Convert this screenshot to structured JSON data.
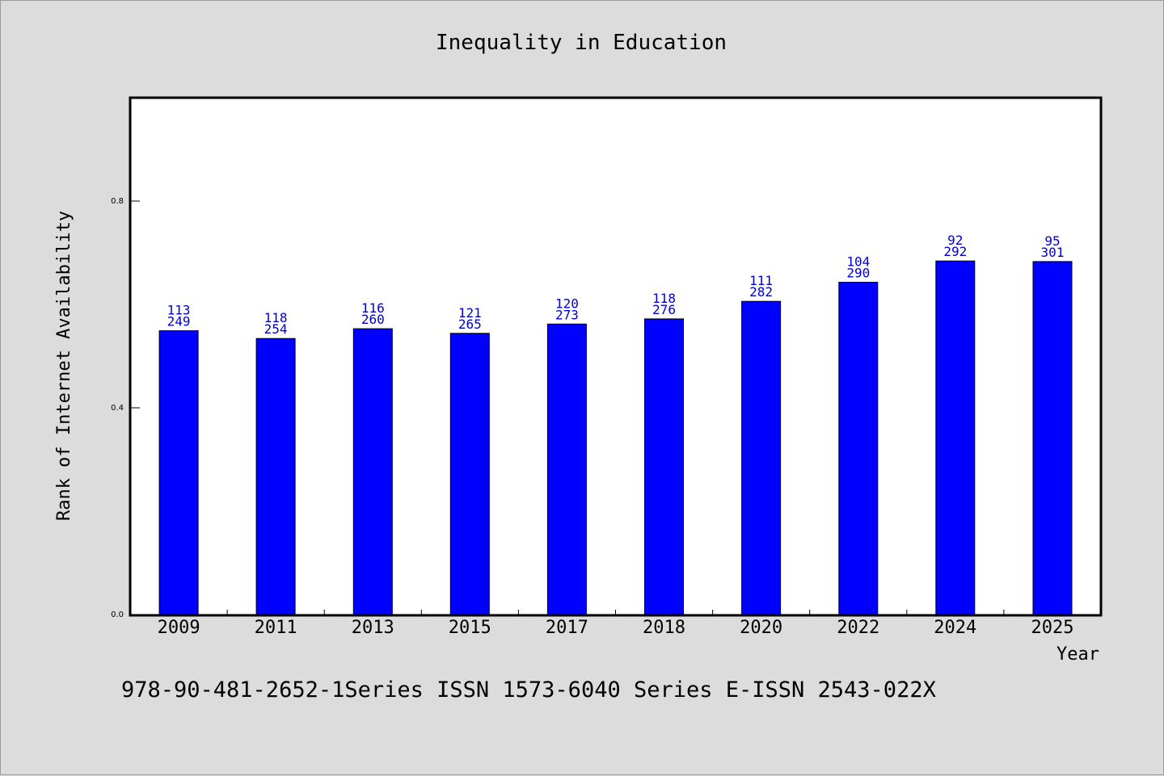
{
  "chart_data": {
    "type": "bar",
    "title": "Inequality in Education",
    "xlabel": "Year",
    "ylabel": "Rank of Internet Availability",
    "categories": [
      "2009",
      "2011",
      "2013",
      "2015",
      "2017",
      "2018",
      "2020",
      "2022",
      "2024",
      "2025"
    ],
    "series": [
      {
        "values": [
          0.549,
          0.534,
          0.553,
          0.544,
          0.562,
          0.572,
          0.606,
          0.643,
          0.684,
          0.683
        ]
      }
    ],
    "data_labels": {
      "upper": [
        "113",
        "118",
        "116",
        "121",
        "120",
        "118",
        "111",
        "104",
        "92",
        "95"
      ],
      "lower": [
        "249",
        "254",
        "260",
        "265",
        "273",
        "276",
        "282",
        "290",
        "292",
        "301"
      ]
    },
    "ylim": [
      0,
      1.0
    ],
    "yticks": [
      0.0,
      0.4,
      0.8
    ],
    "ytick_labels": [
      "0.0",
      "0.4",
      "0.8"
    ],
    "grid": false,
    "legend": "none",
    "colors": {
      "bar": "#0000ff",
      "data_label": "#0000cc",
      "background": "#dcdcdc",
      "plot_background": "#ffffff"
    }
  },
  "footnote": "978-90-481-2652-1Series ISSN 1573-6040 Series E-ISSN 2543-022X"
}
